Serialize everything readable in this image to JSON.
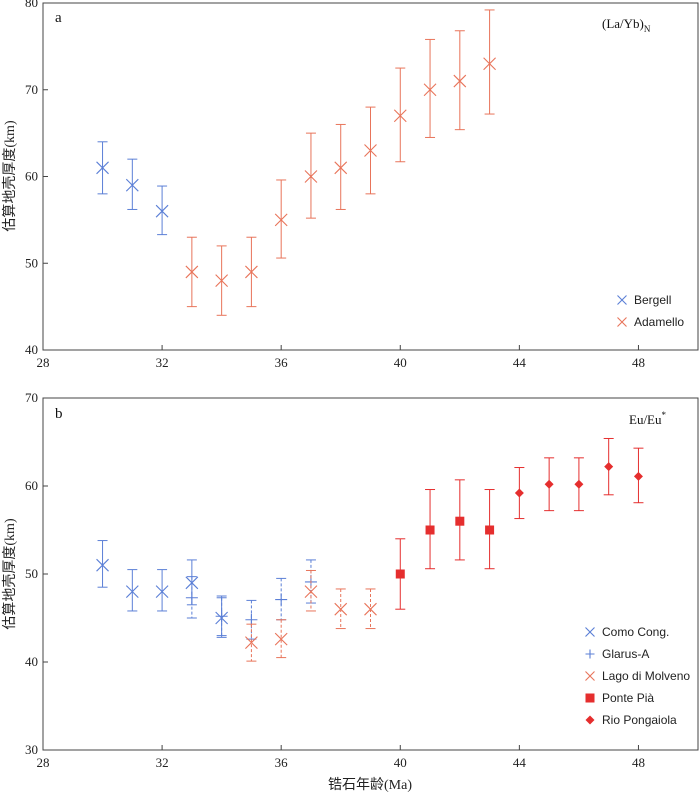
{
  "colors": {
    "blue": "#5B7FD6",
    "orange": "#E8745A",
    "red": "#E52E2E",
    "axis": "#444444"
  },
  "chart_data": [
    {
      "type": "scatter",
      "panel_label": "a",
      "tag_main": "(La/Yb)",
      "tag_sub": "N",
      "ylabel": "估算地壳厚度(km)",
      "xlabel": "",
      "xlim": [
        28,
        50
      ],
      "ylim": [
        40,
        80
      ],
      "xticks": [
        "28",
        "32",
        "36",
        "40",
        "44",
        "48"
      ],
      "yticks": [
        "40",
        "50",
        "60",
        "70",
        "80"
      ],
      "legend_position": "bottom-right",
      "series": [
        {
          "name": "Bergell",
          "marker": "x",
          "color": "#5B7FD6",
          "dashed": false,
          "points": [
            {
              "x": 30,
              "y": 61,
              "lo": 58,
              "hi": 64
            },
            {
              "x": 31,
              "y": 59,
              "lo": 56.2,
              "hi": 62
            },
            {
              "x": 32,
              "y": 56,
              "lo": 53.3,
              "hi": 58.9
            }
          ]
        },
        {
          "name": "Adamello",
          "marker": "x",
          "color": "#E8745A",
          "dashed": false,
          "points": [
            {
              "x": 33,
              "y": 49,
              "lo": 45,
              "hi": 53
            },
            {
              "x": 34,
              "y": 48,
              "lo": 44,
              "hi": 52
            },
            {
              "x": 35,
              "y": 49,
              "lo": 45,
              "hi": 53
            },
            {
              "x": 36,
              "y": 55,
              "lo": 50.6,
              "hi": 59.6
            },
            {
              "x": 37,
              "y": 60,
              "lo": 55.2,
              "hi": 65
            },
            {
              "x": 38,
              "y": 61,
              "lo": 56.2,
              "hi": 66
            },
            {
              "x": 39,
              "y": 63,
              "lo": 58,
              "hi": 68
            },
            {
              "x": 40,
              "y": 67,
              "lo": 61.7,
              "hi": 72.5
            },
            {
              "x": 41,
              "y": 70,
              "lo": 64.5,
              "hi": 75.8
            },
            {
              "x": 42,
              "y": 71,
              "lo": 65.4,
              "hi": 76.8
            },
            {
              "x": 43,
              "y": 73,
              "lo": 67.2,
              "hi": 79.2
            }
          ]
        }
      ]
    },
    {
      "type": "scatter",
      "panel_label": "b",
      "tag_main": "Eu/Eu",
      "tag_sup": "*",
      "ylabel": "估算地壳厚度(km)",
      "xlabel": "锆石年龄(Ma)",
      "xlim": [
        28,
        50
      ],
      "ylim": [
        30,
        70
      ],
      "xticks": [
        "28",
        "32",
        "36",
        "40",
        "44",
        "48"
      ],
      "yticks": [
        "30",
        "40",
        "50",
        "60",
        "70"
      ],
      "legend_position": "bottom-right",
      "series": [
        {
          "name": "Como Cong.",
          "marker": "x",
          "color": "#5B7FD6",
          "dashed": false,
          "points": [
            {
              "x": 30,
              "y": 51,
              "lo": 48.5,
              "hi": 53.8
            },
            {
              "x": 31,
              "y": 48,
              "lo": 45.8,
              "hi": 50.5
            },
            {
              "x": 32,
              "y": 48,
              "lo": 45.8,
              "hi": 50.5
            },
            {
              "x": 33,
              "y": 49,
              "lo": 46.5,
              "hi": 51.6
            },
            {
              "x": 34,
              "y": 45,
              "lo": 42.8,
              "hi": 47.5
            }
          ]
        },
        {
          "name": "Glarus-A",
          "marker": "+",
          "color": "#5B7FD6",
          "dashed": true,
          "points": [
            {
              "x": 33,
              "y": 47.3,
              "lo": 45,
              "hi": 49.7
            },
            {
              "x": 34,
              "y": 45.2,
              "lo": 43,
              "hi": 47.3
            },
            {
              "x": 35,
              "y": 44.8,
              "lo": 42.6,
              "hi": 47
            },
            {
              "x": 36,
              "y": 47.1,
              "lo": 44.8,
              "hi": 49.5
            },
            {
              "x": 37,
              "y": 49.1,
              "lo": 46.7,
              "hi": 51.6
            }
          ]
        },
        {
          "name": "Lago di Molveno",
          "marker": "x",
          "color": "#E8745A",
          "dashed": true,
          "points": [
            {
              "x": 35,
              "y": 42.2,
              "lo": 40.1,
              "hi": 44.3
            },
            {
              "x": 36,
              "y": 42.6,
              "lo": 40.5,
              "hi": 44.8
            },
            {
              "x": 37,
              "y": 48,
              "lo": 45.8,
              "hi": 50.4
            },
            {
              "x": 38,
              "y": 46,
              "lo": 43.8,
              "hi": 48.3
            },
            {
              "x": 39,
              "y": 46,
              "lo": 43.8,
              "hi": 48.3
            }
          ]
        },
        {
          "name": "Ponte Pià",
          "marker": "square",
          "color": "#E52E2E",
          "dashed": false,
          "points": [
            {
              "x": 40,
              "y": 50,
              "lo": 46,
              "hi": 54
            },
            {
              "x": 41,
              "y": 55,
              "lo": 50.6,
              "hi": 59.6
            },
            {
              "x": 42,
              "y": 56,
              "lo": 51.6,
              "hi": 60.7
            },
            {
              "x": 43,
              "y": 55,
              "lo": 50.6,
              "hi": 59.6
            }
          ]
        },
        {
          "name": "Rio Pongaiola",
          "marker": "diamond",
          "color": "#E52E2E",
          "dashed": false,
          "points": [
            {
              "x": 44,
              "y": 59.2,
              "lo": 56.3,
              "hi": 62.1
            },
            {
              "x": 45,
              "y": 60.2,
              "lo": 57.2,
              "hi": 63.2
            },
            {
              "x": 46,
              "y": 60.2,
              "lo": 57.2,
              "hi": 63.2
            },
            {
              "x": 47,
              "y": 62.2,
              "lo": 59,
              "hi": 65.4
            },
            {
              "x": 48,
              "y": 61.1,
              "lo": 58.1,
              "hi": 64.3
            }
          ]
        }
      ]
    }
  ]
}
